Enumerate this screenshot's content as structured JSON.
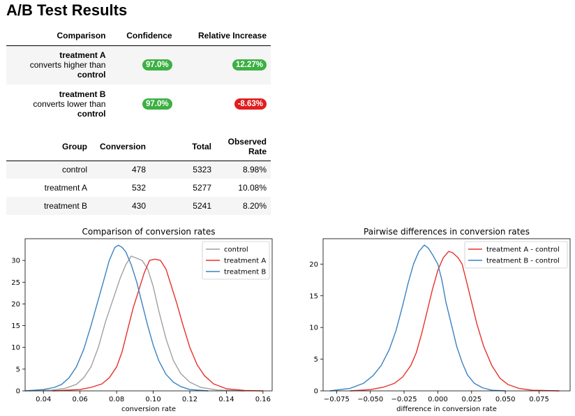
{
  "page": {
    "title": "A/B Test Results"
  },
  "comparison_table": {
    "headers": [
      "Comparison",
      "Confidence",
      "Relative Increase"
    ],
    "rows": [
      {
        "subject": "treatment A",
        "verb": "converts higher than",
        "object": "control",
        "confidence": "97.0%",
        "relative_increase": "12.27%",
        "increase_color": "#3cb043",
        "confidence_color": "#3cb043"
      },
      {
        "subject": "treatment B",
        "verb": "converts lower than",
        "object": "control",
        "confidence": "97.0%",
        "relative_increase": "-8.63%",
        "increase_color": "#e01e1e",
        "confidence_color": "#3cb043"
      }
    ]
  },
  "group_table": {
    "headers": [
      "Group",
      "Conversion",
      "Total",
      "Observed Rate"
    ],
    "rows": [
      {
        "group": "control",
        "conversion": "478",
        "total": "5323",
        "rate": "8.98%"
      },
      {
        "group": "treatment A",
        "conversion": "532",
        "total": "5277",
        "rate": "10.08%"
      },
      {
        "group": "treatment B",
        "conversion": "430",
        "total": "5241",
        "rate": "8.20%"
      }
    ]
  },
  "chart_data": [
    {
      "type": "line",
      "title": "Comparison of conversion rates",
      "xlabel": "conversion rate",
      "ylabel": "",
      "xlim": [
        0.03,
        0.165
      ],
      "ylim": [
        0,
        35
      ],
      "xticks": [
        "0.04",
        "0.06",
        "0.08",
        "0.10",
        "0.12",
        "0.14",
        "0.16"
      ],
      "yticks": [
        "0",
        "5",
        "10",
        "15",
        "20",
        "25",
        "30"
      ],
      "legend_position": "top-right",
      "series": [
        {
          "name": "control",
          "color": "#a0a0a0",
          "x": [
            0.032,
            0.045,
            0.052,
            0.058,
            0.062,
            0.066,
            0.07,
            0.074,
            0.078,
            0.082,
            0.085,
            0.088,
            0.091,
            0.094,
            0.097,
            0.1,
            0.103,
            0.107,
            0.111,
            0.115,
            0.12,
            0.126,
            0.135,
            0.15
          ],
          "y": [
            0,
            0.2,
            0.6,
            1.5,
            3,
            5.5,
            10,
            16,
            21,
            26,
            29,
            31,
            30.5,
            30,
            28,
            24,
            18.5,
            12,
            7,
            4,
            2,
            0.8,
            0.2,
            0
          ]
        },
        {
          "name": "treatment A",
          "color": "#e8302a",
          "x": [
            0.045,
            0.06,
            0.066,
            0.072,
            0.076,
            0.08,
            0.083,
            0.086,
            0.089,
            0.092,
            0.095,
            0.098,
            0.101,
            0.104,
            0.107,
            0.11,
            0.113,
            0.116,
            0.12,
            0.124,
            0.128,
            0.133,
            0.14,
            0.15,
            0.16
          ],
          "y": [
            0,
            0.3,
            0.8,
            1.6,
            3,
            5.5,
            9,
            14,
            19,
            23,
            27,
            30,
            30.3,
            30,
            28,
            24,
            20,
            15.5,
            10,
            6,
            3.5,
            1.6,
            0.5,
            0.1,
            0
          ]
        },
        {
          "name": "treatment B",
          "color": "#3a82c0",
          "x": [
            0.03,
            0.04,
            0.046,
            0.05,
            0.054,
            0.058,
            0.062,
            0.066,
            0.07,
            0.073,
            0.076,
            0.079,
            0.081,
            0.083,
            0.085,
            0.088,
            0.091,
            0.094,
            0.097,
            0.1,
            0.103,
            0.107,
            0.111,
            0.115,
            0.12,
            0.13
          ],
          "y": [
            0,
            0.3,
            0.8,
            1.5,
            3,
            5.5,
            9.5,
            15,
            21,
            25.5,
            30,
            33,
            33.5,
            33,
            32,
            29,
            25,
            20,
            15,
            10.5,
            7,
            3.8,
            2,
            1,
            0.3,
            0
          ]
        }
      ]
    },
    {
      "type": "line",
      "title": "Pairwise differences in conversion rates",
      "xlabel": "difference in conversion rate",
      "ylabel": "",
      "xlim": [
        -0.085,
        0.098
      ],
      "ylim": [
        0,
        24
      ],
      "xticks": [
        "−0.075",
        "−0.050",
        "−0.025",
        "0.000",
        "0.025",
        "0.050",
        "0.075"
      ],
      "yticks": [
        "0",
        "5",
        "10",
        "15",
        "20"
      ],
      "legend_position": "top-right",
      "series": [
        {
          "name": "treatment A - control",
          "color": "#e8302a",
          "x": [
            -0.065,
            -0.05,
            -0.04,
            -0.032,
            -0.026,
            -0.02,
            -0.016,
            -0.012,
            -0.008,
            -0.004,
            0.0,
            0.004,
            0.008,
            0.011,
            0.015,
            0.018,
            0.021,
            0.025,
            0.029,
            0.034,
            0.04,
            0.046,
            0.052,
            0.06,
            0.07,
            0.09
          ],
          "y": [
            0,
            0.2,
            0.6,
            1.2,
            2.2,
            4,
            6,
            9,
            12.5,
            16,
            19,
            21,
            22,
            21.8,
            21,
            20,
            17.5,
            14,
            10.5,
            7,
            4,
            2,
            1,
            0.4,
            0.1,
            0
          ]
        },
        {
          "name": "treatment B - control",
          "color": "#3a82c0",
          "x": [
            -0.08,
            -0.065,
            -0.055,
            -0.048,
            -0.042,
            -0.036,
            -0.031,
            -0.026,
            -0.022,
            -0.018,
            -0.014,
            -0.01,
            -0.007,
            -0.004,
            0.0,
            0.003,
            0.006,
            0.01,
            0.014,
            0.018,
            0.022,
            0.027,
            0.033,
            0.04,
            0.05
          ],
          "y": [
            0,
            0.4,
            1.2,
            2.4,
            4,
            6.5,
            9.5,
            13.5,
            17,
            20,
            22,
            23,
            22.5,
            21.5,
            20,
            17.5,
            14,
            10.5,
            7,
            4.5,
            2.5,
            1.2,
            0.5,
            0.1,
            0
          ]
        }
      ]
    }
  ]
}
